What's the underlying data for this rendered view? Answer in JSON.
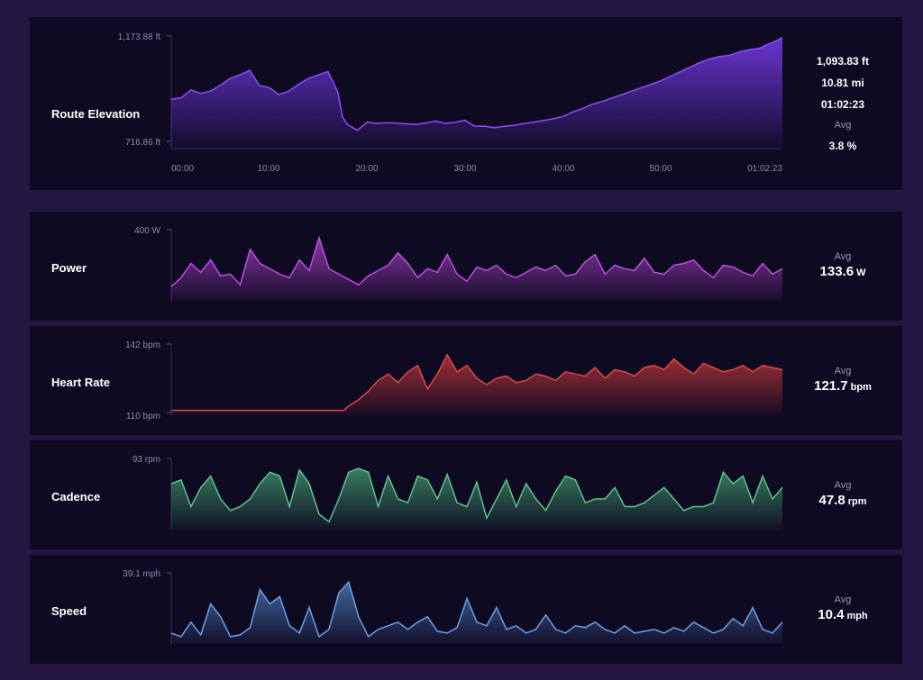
{
  "chart_data": [
    {
      "type": "area",
      "title": "Route Elevation",
      "ytick_labels": [
        "1,173.88 ft",
        "716.86 ft"
      ],
      "ylim": [
        716.86,
        1173.88
      ],
      "xtick_labels": [
        "00:00",
        "10:00",
        "20:00",
        "30:00",
        "40:00",
        "50:00",
        "01:02:23"
      ],
      "x_minutes": [
        0,
        1,
        2,
        3,
        4,
        5,
        6,
        7,
        8,
        9,
        10,
        11,
        12,
        13,
        14,
        15,
        16,
        17,
        17.5,
        18,
        19,
        20,
        21,
        22,
        23,
        24,
        25,
        26,
        27,
        28,
        29,
        30,
        31,
        32,
        33,
        34,
        35,
        36,
        37,
        38,
        39,
        40,
        41,
        42,
        43,
        44,
        45,
        46,
        47,
        48,
        49,
        50,
        51,
        52,
        53,
        54,
        55,
        56,
        57,
        58,
        59,
        60,
        61,
        62,
        62.38
      ],
      "values": [
        900,
        905,
        940,
        925,
        935,
        960,
        990,
        1005,
        1025,
        960,
        950,
        920,
        935,
        965,
        990,
        1005,
        1020,
        930,
        820,
        790,
        765,
        800,
        795,
        798,
        796,
        793,
        790,
        797,
        805,
        795,
        800,
        808,
        782,
        783,
        776,
        782,
        786,
        794,
        800,
        808,
        815,
        825,
        845,
        860,
        878,
        890,
        905,
        920,
        935,
        950,
        965,
        980,
        1000,
        1020,
        1040,
        1060,
        1075,
        1085,
        1090,
        1105,
        1115,
        1120,
        1140,
        1158,
        1168
      ],
      "color": "#7a3cf0",
      "stats": {
        "elevation": "1,093.83 ft",
        "distance": "10.81 mi",
        "duration": "01:02:23",
        "avg_label": "Avg",
        "avg_grade": "3.8 %"
      }
    },
    {
      "type": "area",
      "title": "Power",
      "ytick_labels": [
        "400 W"
      ],
      "ylim": [
        0,
        400
      ],
      "x_minutes": [
        0,
        1,
        2,
        3,
        4,
        5,
        6,
        7,
        8,
        9,
        10,
        11,
        12,
        13,
        14,
        15,
        16,
        17,
        18,
        19,
        20,
        21,
        22,
        23,
        24,
        25,
        26,
        27,
        28,
        29,
        30,
        31,
        32,
        33,
        34,
        35,
        36,
        37,
        38,
        39,
        40,
        41,
        42,
        43,
        44,
        45,
        46,
        47,
        48,
        49,
        50,
        51,
        52,
        53,
        54,
        55,
        56,
        57,
        58,
        59,
        60,
        61,
        62
      ],
      "values": [
        80,
        130,
        210,
        160,
        230,
        140,
        150,
        90,
        290,
        210,
        180,
        150,
        130,
        230,
        170,
        355,
        180,
        150,
        120,
        90,
        140,
        170,
        200,
        270,
        210,
        130,
        180,
        160,
        260,
        150,
        110,
        190,
        170,
        200,
        150,
        130,
        160,
        190,
        170,
        200,
        140,
        150,
        220,
        260,
        150,
        200,
        180,
        170,
        240,
        160,
        150,
        200,
        210,
        230,
        170,
        130,
        200,
        190,
        160,
        140,
        210,
        150,
        180
      ],
      "color": "#c14be0",
      "avg_label": "Avg",
      "avg_value": "133.6",
      "avg_unit": "W"
    },
    {
      "type": "area",
      "title": "Heart Rate",
      "ytick_labels": [
        "142 bpm",
        "110 bpm"
      ],
      "ylim": [
        110,
        142
      ],
      "x_minutes": [
        0,
        17.5,
        18,
        19,
        20,
        21,
        22,
        23,
        24,
        25,
        26,
        27,
        28,
        29,
        30,
        31,
        32,
        33,
        34,
        35,
        36,
        37,
        38,
        39,
        40,
        41,
        42,
        43,
        44,
        45,
        46,
        47,
        48,
        49,
        50,
        51,
        52,
        53,
        54,
        55,
        56,
        57,
        58,
        59,
        60,
        61,
        62
      ],
      "values": [
        111,
        111,
        113,
        116,
        120,
        125,
        128,
        124,
        129,
        132,
        121,
        128,
        137,
        129,
        132,
        126,
        123,
        126,
        127,
        124,
        125,
        128,
        127,
        125,
        129,
        128,
        127,
        131,
        126,
        130,
        129,
        127,
        131,
        132,
        130,
        135,
        131,
        128,
        133,
        131,
        129,
        130,
        132,
        129,
        132,
        131,
        130
      ],
      "color": "#d23c3c",
      "avg_label": "Avg",
      "avg_value": "121.7",
      "avg_unit": "bpm"
    },
    {
      "type": "area",
      "title": "Cadence",
      "ytick_labels": [
        "93 rpm"
      ],
      "ylim": [
        0,
        93
      ],
      "x_minutes": [
        0,
        1,
        2,
        3,
        4,
        5,
        6,
        7,
        8,
        9,
        10,
        11,
        12,
        13,
        14,
        15,
        16,
        17,
        18,
        19,
        20,
        21,
        22,
        23,
        24,
        25,
        26,
        27,
        28,
        29,
        30,
        31,
        32,
        33,
        34,
        35,
        36,
        37,
        38,
        39,
        40,
        41,
        42,
        43,
        44,
        45,
        46,
        47,
        48,
        49,
        50,
        51,
        52,
        53,
        54,
        55,
        56,
        57,
        58,
        59,
        60,
        61,
        62
      ],
      "values": [
        60,
        65,
        30,
        55,
        70,
        40,
        25,
        30,
        40,
        60,
        75,
        70,
        30,
        78,
        60,
        20,
        10,
        40,
        75,
        80,
        75,
        30,
        70,
        40,
        35,
        70,
        65,
        40,
        72,
        35,
        30,
        62,
        15,
        40,
        65,
        30,
        60,
        40,
        25,
        50,
        70,
        65,
        35,
        40,
        40,
        55,
        30,
        30,
        35,
        45,
        55,
        40,
        25,
        30,
        30,
        35,
        75,
        60,
        70,
        35,
        70,
        40,
        55
      ],
      "color": "#4bb07a",
      "avg_label": "Avg",
      "avg_value": "47.8",
      "avg_unit": "rpm"
    },
    {
      "type": "area",
      "title": "Speed",
      "ytick_labels": [
        "39.1 mph"
      ],
      "ylim": [
        0,
        39.1
      ],
      "x_minutes": [
        0,
        1,
        2,
        3,
        4,
        5,
        6,
        7,
        8,
        9,
        10,
        11,
        12,
        13,
        14,
        15,
        16,
        17,
        18,
        19,
        20,
        21,
        22,
        23,
        24,
        25,
        26,
        27,
        28,
        29,
        30,
        31,
        32,
        33,
        34,
        35,
        36,
        37,
        38,
        39,
        40,
        41,
        42,
        43,
        44,
        45,
        46,
        47,
        48,
        49,
        50,
        51,
        52,
        53,
        54,
        55,
        56,
        57,
        58,
        59,
        60,
        61,
        62
      ],
      "values": [
        6,
        4,
        12,
        5,
        22,
        15,
        4,
        5,
        9,
        30,
        22,
        26,
        10,
        6,
        20,
        4,
        8,
        28,
        34,
        15,
        4,
        8,
        10,
        12,
        8,
        12,
        15,
        7,
        6,
        9,
        25,
        12,
        10,
        20,
        8,
        10,
        6,
        8,
        16,
        8,
        6,
        10,
        9,
        12,
        8,
        6,
        10,
        6,
        7,
        8,
        6,
        9,
        7,
        12,
        9,
        6,
        8,
        14,
        10,
        20,
        8,
        6,
        12
      ],
      "color": "#5a8fd8",
      "avg_label": "Avg",
      "avg_value": "10.4",
      "avg_unit": "mph"
    }
  ]
}
